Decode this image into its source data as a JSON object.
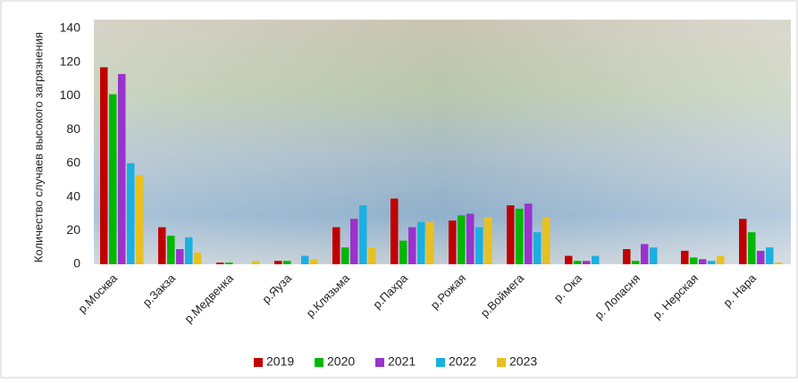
{
  "chart_data": {
    "type": "bar",
    "y_label": "Количество случаев высокого загрязнения",
    "categories": [
      "р.Москва",
      "р.Закза",
      "р.Медвенка",
      "р.Яуза",
      "р.Клязьма",
      "р.Пахра",
      "р.Рожая",
      "р.Воймега",
      "р. Ока",
      "р. Лопасня",
      "р. Нерская",
      "р. Нара"
    ],
    "series": [
      {
        "name": "2019",
        "color": "#c00000",
        "values": [
          117,
          22,
          1,
          2,
          22,
          39,
          26,
          35,
          5,
          9,
          8,
          27
        ]
      },
      {
        "name": "2020",
        "color": "#00b800",
        "values": [
          101,
          17,
          1,
          2,
          10,
          14,
          29,
          33,
          2,
          2,
          4,
          19
        ]
      },
      {
        "name": "2021",
        "color": "#9933cc",
        "values": [
          113,
          9,
          0,
          0,
          27,
          22,
          30,
          36,
          2,
          12,
          3,
          8
        ]
      },
      {
        "name": "2022",
        "color": "#1ab0e0",
        "values": [
          60,
          16,
          0,
          5,
          35,
          25,
          22,
          19,
          5,
          10,
          2,
          10
        ]
      },
      {
        "name": "2023",
        "color": "#e8c020",
        "values": [
          53,
          7,
          2,
          3,
          10,
          25,
          28,
          28,
          0,
          0,
          5,
          1
        ]
      }
    ],
    "ylim": [
      0,
      140
    ],
    "yticks": [
      0,
      20,
      40,
      60,
      80,
      100,
      120,
      140
    ],
    "legend": "bottom"
  }
}
